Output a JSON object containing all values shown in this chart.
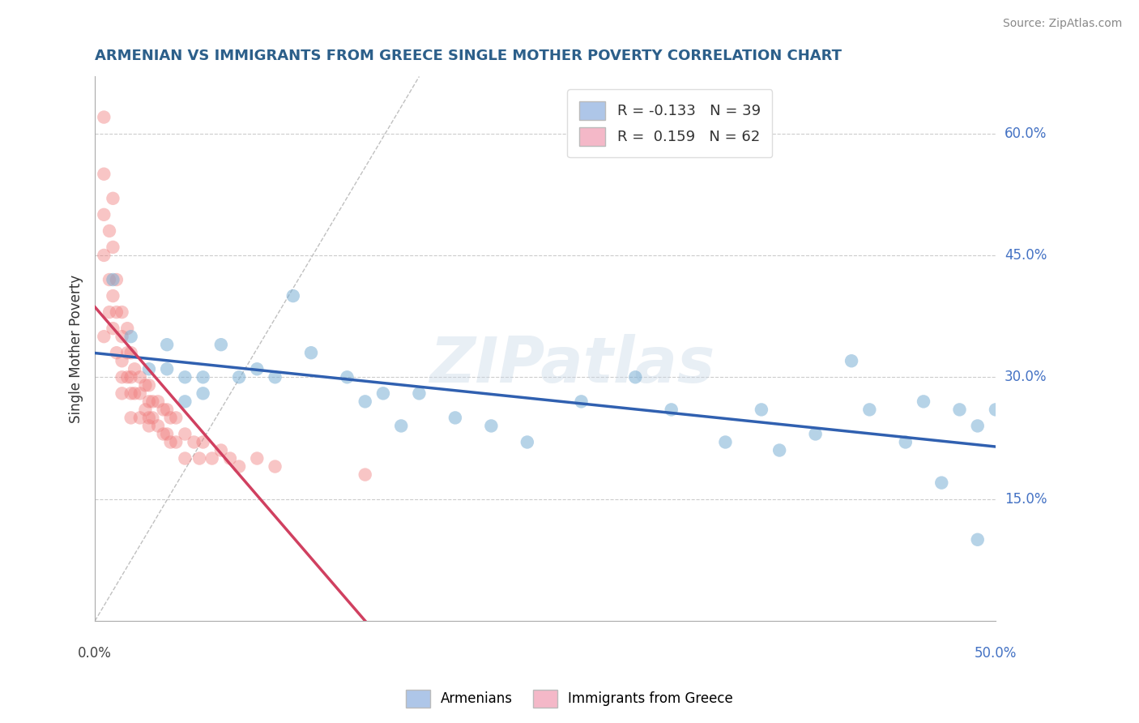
{
  "title": "ARMENIAN VS IMMIGRANTS FROM GREECE SINGLE MOTHER POVERTY CORRELATION CHART",
  "source": "Source: ZipAtlas.com",
  "ylabel": "Single Mother Poverty",
  "xlim": [
    0.0,
    0.5
  ],
  "ylim": [
    0.0,
    0.67
  ],
  "yticks": [
    0.15,
    0.3,
    0.45,
    0.6
  ],
  "ytick_labels": [
    "15.0%",
    "30.0%",
    "45.0%",
    "60.0%"
  ],
  "armenians_color": "#7bafd4",
  "greece_color": "#f08080",
  "trend_arm_color": "#3060b0",
  "trend_gr_color": "#d04060",
  "title_color": "#2c5f8a",
  "source_color": "#888888",
  "background_color": "#ffffff",
  "grid_color": "#cccccc",
  "watermark_text": "ZIPatlas",
  "armenians_N": 39,
  "greece_N": 62,
  "legend_arm_label": "R = -0.133   N = 39",
  "legend_gr_label": "R =  0.159   N = 62",
  "bottom_legend_arm": "Armenians",
  "bottom_legend_gr": "Immigrants from Greece",
  "arm_x": [
    0.01,
    0.02,
    0.03,
    0.04,
    0.04,
    0.05,
    0.05,
    0.06,
    0.06,
    0.07,
    0.08,
    0.09,
    0.1,
    0.11,
    0.12,
    0.14,
    0.15,
    0.16,
    0.17,
    0.18,
    0.2,
    0.22,
    0.24,
    0.27,
    0.3,
    0.32,
    0.35,
    0.37,
    0.38,
    0.4,
    0.42,
    0.43,
    0.45,
    0.46,
    0.47,
    0.48,
    0.49,
    0.49,
    0.5
  ],
  "arm_y": [
    0.42,
    0.35,
    0.31,
    0.31,
    0.34,
    0.3,
    0.27,
    0.3,
    0.28,
    0.34,
    0.3,
    0.31,
    0.3,
    0.4,
    0.33,
    0.3,
    0.27,
    0.28,
    0.24,
    0.28,
    0.25,
    0.24,
    0.22,
    0.27,
    0.3,
    0.26,
    0.22,
    0.26,
    0.21,
    0.23,
    0.32,
    0.26,
    0.22,
    0.27,
    0.17,
    0.26,
    0.1,
    0.24,
    0.26
  ],
  "gr_x": [
    0.005,
    0.005,
    0.005,
    0.005,
    0.005,
    0.008,
    0.008,
    0.008,
    0.01,
    0.01,
    0.01,
    0.01,
    0.012,
    0.012,
    0.012,
    0.015,
    0.015,
    0.015,
    0.015,
    0.015,
    0.018,
    0.018,
    0.018,
    0.02,
    0.02,
    0.02,
    0.02,
    0.022,
    0.022,
    0.025,
    0.025,
    0.025,
    0.028,
    0.028,
    0.03,
    0.03,
    0.03,
    0.03,
    0.032,
    0.032,
    0.035,
    0.035,
    0.038,
    0.038,
    0.04,
    0.04,
    0.042,
    0.042,
    0.045,
    0.045,
    0.05,
    0.05,
    0.055,
    0.058,
    0.06,
    0.065,
    0.07,
    0.075,
    0.08,
    0.09,
    0.1,
    0.15
  ],
  "gr_y": [
    0.62,
    0.55,
    0.5,
    0.45,
    0.35,
    0.48,
    0.42,
    0.38,
    0.52,
    0.46,
    0.4,
    0.36,
    0.42,
    0.38,
    0.33,
    0.38,
    0.35,
    0.32,
    0.3,
    0.28,
    0.36,
    0.33,
    0.3,
    0.33,
    0.3,
    0.28,
    0.25,
    0.31,
    0.28,
    0.3,
    0.28,
    0.25,
    0.29,
    0.26,
    0.29,
    0.27,
    0.25,
    0.24,
    0.27,
    0.25,
    0.27,
    0.24,
    0.26,
    0.23,
    0.26,
    0.23,
    0.25,
    0.22,
    0.25,
    0.22,
    0.23,
    0.2,
    0.22,
    0.2,
    0.22,
    0.2,
    0.21,
    0.2,
    0.19,
    0.2,
    0.19,
    0.18
  ]
}
